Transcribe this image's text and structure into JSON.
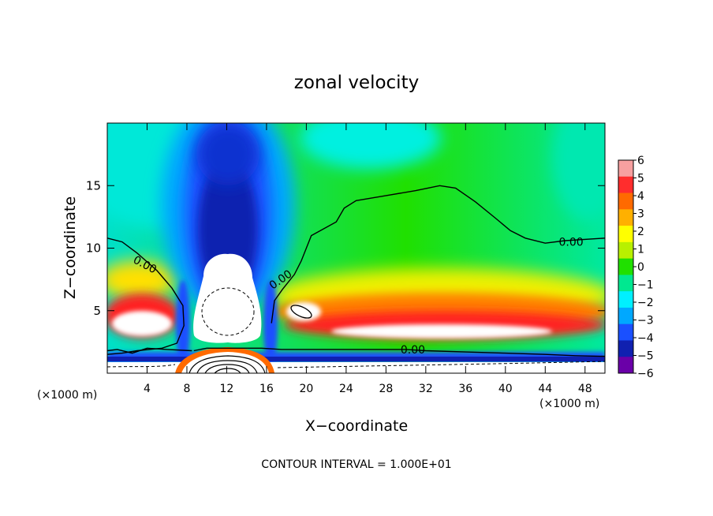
{
  "chart_data": {
    "type": "heatmap",
    "subtype": "filled-contour",
    "title": "zonal velocity",
    "xlabel": "X−coordinate",
    "ylabel": "Z−coordinate",
    "x_unit_left": "(×1000 m)",
    "x_unit_right": "(×1000 m)",
    "xlim": [
      0,
      50
    ],
    "ylim": [
      0,
      20
    ],
    "x_ticks": [
      4,
      8,
      12,
      16,
      20,
      24,
      28,
      32,
      36,
      40,
      44,
      48
    ],
    "y_ticks": [
      5,
      10,
      15
    ],
    "colorbar": {
      "min": -6,
      "max": 6,
      "ticks": [
        6,
        5,
        4,
        3,
        2,
        1,
        0,
        -1,
        -2,
        -3,
        -4,
        -5,
        -6
      ],
      "tick_labels": [
        "6",
        "5",
        "4",
        "3",
        "2",
        "1",
        "0",
        "−1",
        "−2",
        "−3",
        "−4",
        "−5",
        "−6"
      ],
      "colors": [
        "#f7a0a0",
        "#ff2d2d",
        "#ff6a00",
        "#ffb000",
        "#ffff00",
        "#b8f000",
        "#20e000",
        "#00e890",
        "#00f0ff",
        "#00a8ff",
        "#1a50ff",
        "#1020b0",
        "#6a00a8"
      ]
    },
    "contour_labels": [
      {
        "text": "0.00",
        "x": 3.8,
        "y": 8.7
      },
      {
        "text": "0.00",
        "x": 17.4,
        "y": 7.5
      },
      {
        "text": "0.00",
        "x": 46.6,
        "y": 10.5
      },
      {
        "text": "0.00",
        "x": 30.7,
        "y": 1.9
      }
    ],
    "zero_contours": [
      [
        [
          0,
          10.8
        ],
        [
          1.5,
          10.5
        ],
        [
          3,
          9.6
        ],
        [
          5,
          8.2
        ],
        [
          6.5,
          6.8
        ],
        [
          7.6,
          5.4
        ],
        [
          7.7,
          3.8
        ],
        [
          7.0,
          2.4
        ],
        [
          5.5,
          2.0
        ],
        [
          3,
          1.8
        ],
        [
          1.5,
          1.6
        ],
        [
          0,
          1.5
        ]
      ],
      [
        [
          0,
          1.8
        ],
        [
          1,
          1.9
        ],
        [
          2.5,
          1.6
        ],
        [
          4,
          2.0
        ],
        [
          6,
          1.9
        ],
        [
          8.5,
          1.8
        ]
      ],
      [
        [
          16.5,
          4.0
        ],
        [
          16.8,
          5.8
        ],
        [
          17.6,
          6.7
        ],
        [
          18.8,
          7.9
        ],
        [
          19.5,
          9.0
        ],
        [
          20.0,
          10.0
        ],
        [
          20.5,
          11.0
        ],
        [
          23.0,
          12.1
        ],
        [
          23.8,
          13.2
        ],
        [
          25,
          13.8
        ],
        [
          28,
          14.2
        ],
        [
          31,
          14.6
        ],
        [
          33.4,
          15.0
        ],
        [
          35,
          14.8
        ],
        [
          37,
          13.7
        ],
        [
          39,
          12.4
        ],
        [
          40.5,
          11.4
        ],
        [
          42,
          10.8
        ],
        [
          44,
          10.4
        ],
        [
          46,
          10.6
        ],
        [
          50,
          10.8
        ]
      ],
      [
        [
          8.7,
          1.8
        ],
        [
          10,
          2.0
        ],
        [
          15.5,
          2.0
        ],
        [
          17.5,
          1.9
        ],
        [
          21,
          1.9
        ],
        [
          26,
          1.9
        ],
        [
          30,
          1.9
        ],
        [
          32,
          1.8
        ],
        [
          36,
          1.7
        ],
        [
          40,
          1.6
        ],
        [
          44,
          1.5
        ],
        [
          47,
          1.4
        ],
        [
          50,
          1.35
        ]
      ]
    ]
  },
  "footer": {
    "contour_interval": "CONTOUR INTERVAL = 1.000E+01"
  }
}
